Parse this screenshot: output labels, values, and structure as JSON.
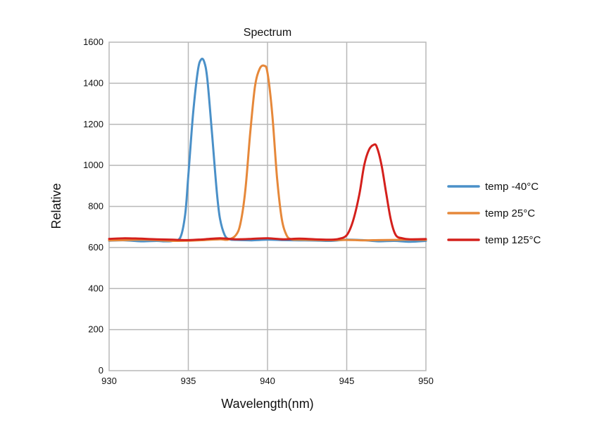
{
  "chart_data": {
    "type": "line",
    "title": "Spectrum",
    "xlabel": "Wavelength(nm)",
    "ylabel": "Relative",
    "xlim": [
      930,
      950
    ],
    "ylim": [
      0,
      1600
    ],
    "xticks": [
      930,
      935,
      940,
      945,
      950
    ],
    "xtick_labels": [
      "930",
      "935",
      "940",
      "945",
      "950"
    ],
    "yticks": [
      0,
      200,
      400,
      600,
      800,
      1000,
      1200,
      1400,
      1600
    ],
    "ytick_labels": [
      "0",
      "200",
      "400",
      "600",
      "800",
      "1000",
      "1200",
      "1400",
      "1600"
    ],
    "grid": true,
    "legend_position": "right",
    "series": [
      {
        "name": "temp -40°C",
        "color": "#4a90c8",
        "x": [
          930,
          931,
          932,
          933,
          933.5,
          934,
          934.5,
          934.8,
          935,
          935.3,
          935.6,
          935.8,
          936,
          936.2,
          936.5,
          936.8,
          937,
          937.3,
          937.6,
          938,
          939,
          940,
          941,
          942,
          943,
          944,
          945,
          946,
          947,
          948,
          949,
          950
        ],
        "y": [
          633,
          635,
          630,
          632,
          630,
          632,
          650,
          760,
          950,
          1250,
          1460,
          1515,
          1505,
          1420,
          1150,
          870,
          740,
          660,
          640,
          637,
          635,
          638,
          636,
          635,
          634,
          632,
          638,
          636,
          630,
          632,
          628,
          632
        ]
      },
      {
        "name": "temp 25°C",
        "color": "#e6883a",
        "x": [
          930,
          931,
          932,
          933,
          934,
          935,
          936,
          937,
          937.5,
          938,
          938.3,
          938.6,
          938.9,
          939.2,
          939.5,
          939.8,
          940,
          940.3,
          940.6,
          940.9,
          941.2,
          941.5,
          942,
          943,
          944,
          945,
          946,
          947,
          948,
          949,
          950
        ],
        "y": [
          635,
          636,
          638,
          636,
          632,
          633,
          636,
          640,
          638,
          660,
          720,
          880,
          1150,
          1380,
          1470,
          1485,
          1450,
          1250,
          940,
          740,
          660,
          640,
          638,
          637,
          636,
          637,
          635,
          636,
          637,
          638,
          637
        ]
      },
      {
        "name": "temp 125°C",
        "color": "#d4201c",
        "x": [
          930,
          931,
          932,
          933,
          934,
          935,
          936,
          937,
          938,
          939,
          940,
          941,
          942,
          943,
          944,
          944.5,
          945,
          945.4,
          945.8,
          946.1,
          946.4,
          946.7,
          946.9,
          947.2,
          947.5,
          947.8,
          948.1,
          948.5,
          949,
          950
        ],
        "y": [
          642,
          645,
          643,
          640,
          638,
          636,
          640,
          645,
          640,
          642,
          645,
          640,
          643,
          640,
          638,
          642,
          660,
          730,
          860,
          1000,
          1075,
          1100,
          1090,
          1000,
          860,
          730,
          660,
          645,
          640,
          641
        ]
      }
    ]
  }
}
